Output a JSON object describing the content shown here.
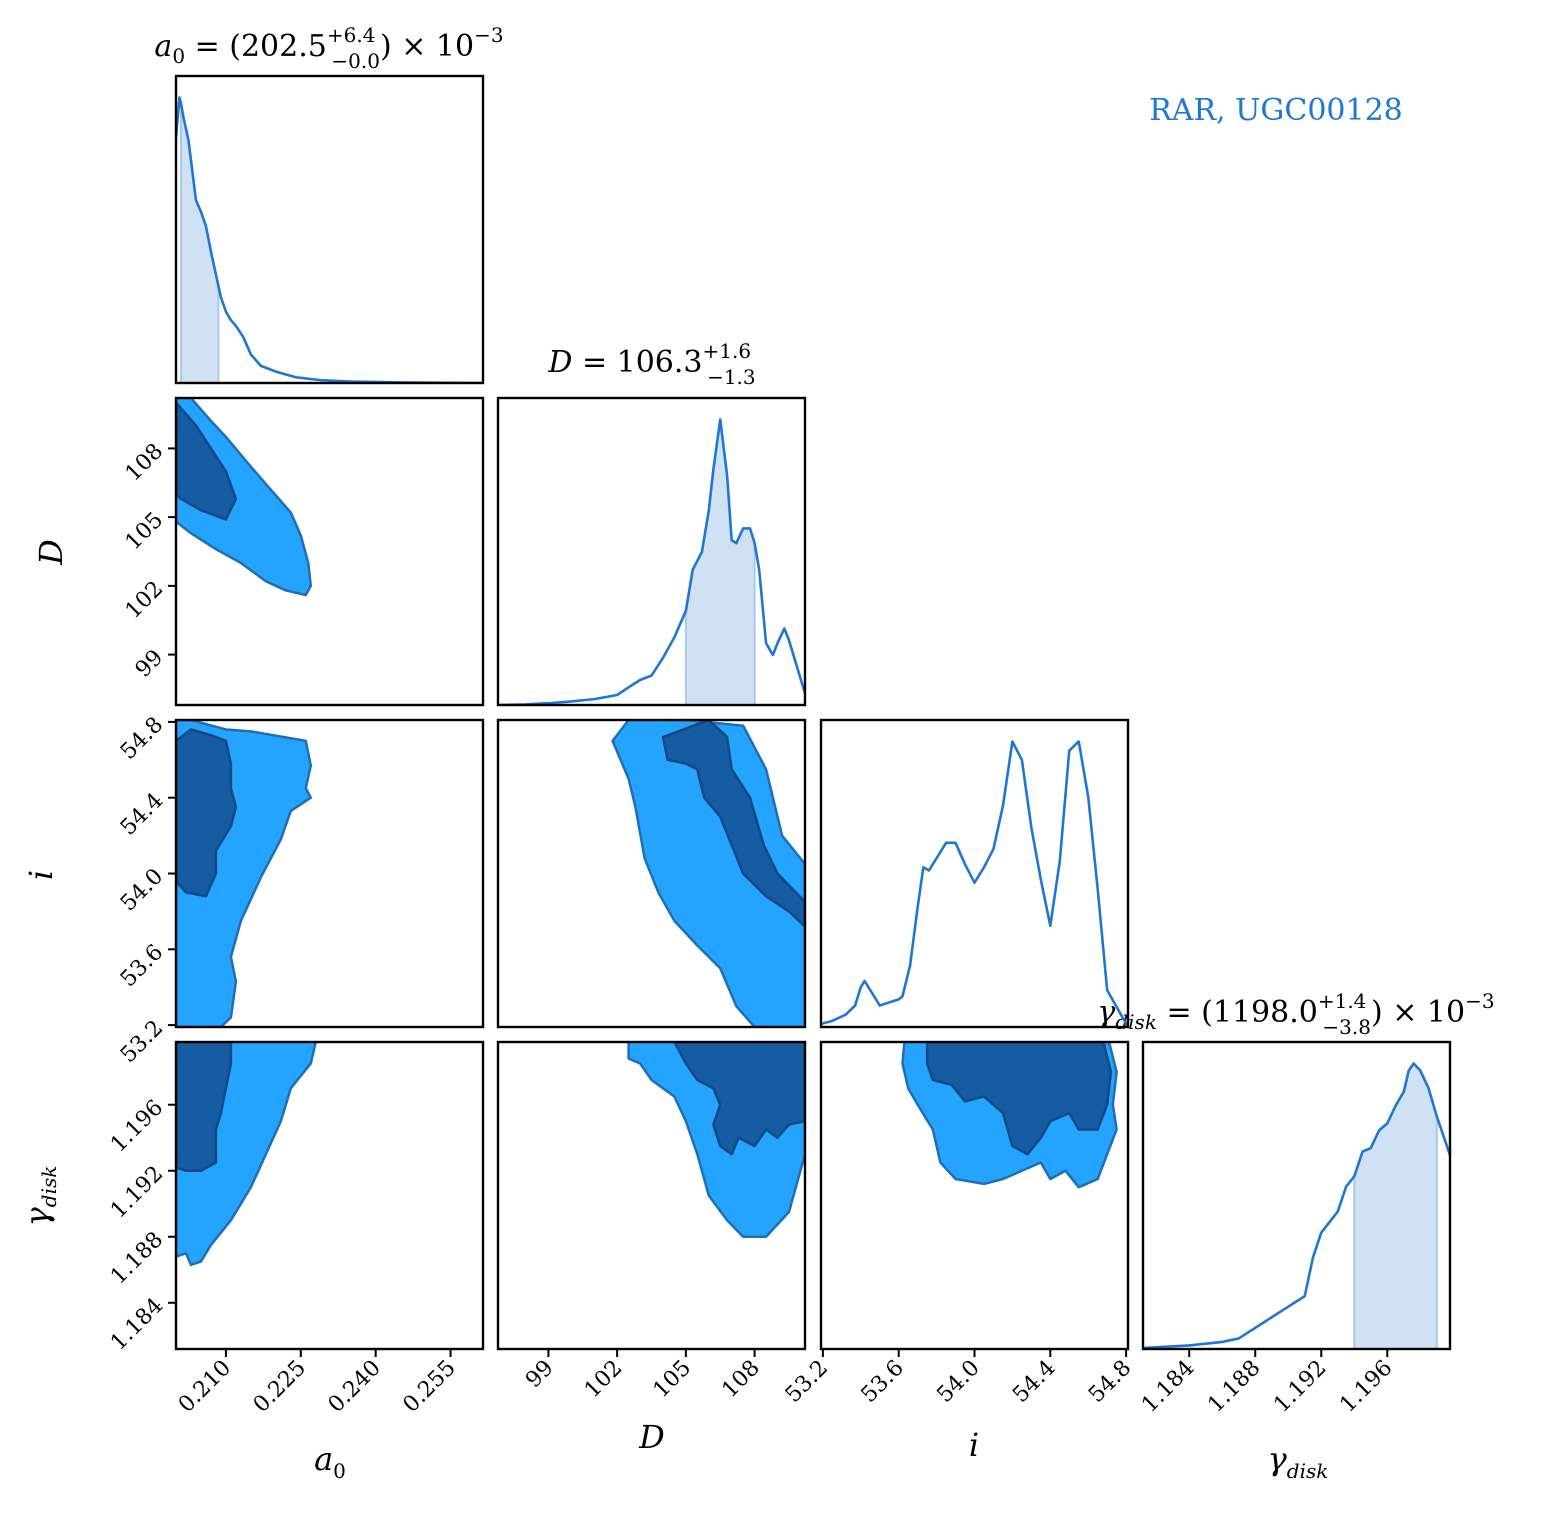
{
  "figure": {
    "legend_text": "RAR, UGC00128",
    "colors": {
      "line": "#1f77d4",
      "hist_fill": "#cfe1f3",
      "contour_inner": "#155ca3",
      "contour_outer": "#24a3ff",
      "contour_edge": "#1f6fb5",
      "frame": "#000000"
    }
  },
  "titles": {
    "a0": {
      "lhs": "a",
      "sub": "0",
      "eq": " = (202.5",
      "sup": "+6.4",
      "subscr": "−0.0",
      "tail": ") × 10",
      "exp": "−3"
    },
    "D": {
      "lhs": "D",
      "eq": " = 106.3",
      "sup": "+1.6",
      "subscr": "−1.3"
    },
    "gamma": {
      "lhs": "γ",
      "sub": "disk",
      "eq": " = (1198.0",
      "sup": "+1.4",
      "subscr": "−3.8",
      "tail": ") × 10",
      "exp": "−3"
    }
  },
  "axis_labels": {
    "x": [
      {
        "main": "a",
        "sub": "0"
      },
      {
        "main": "D",
        "sub": ""
      },
      {
        "main": "i",
        "sub": ""
      },
      {
        "main": "γ",
        "sub": "disk"
      }
    ],
    "y": [
      {
        "main": "D",
        "sub": ""
      },
      {
        "main": "i",
        "sub": ""
      },
      {
        "main": "γ",
        "sub": "disk"
      }
    ]
  },
  "chart_data": {
    "type": "corner",
    "parameters": [
      "a_0",
      "D",
      "i",
      "gamma_disk"
    ],
    "ranges": {
      "a0": [
        0.2,
        0.2615
      ],
      "D": [
        96.8,
        110.2
      ],
      "i": [
        53.19,
        54.81
      ],
      "gamma": [
        1.1812,
        1.1998
      ]
    },
    "ticks": {
      "a0": [
        "0.210",
        "0.225",
        "0.240",
        "0.255"
      ],
      "D": [
        "99",
        "102",
        "105",
        "108"
      ],
      "i": [
        "53.2",
        "53.6",
        "54.0",
        "54.4",
        "54.8"
      ],
      "gamma": [
        "1.184",
        "1.188",
        "1.192",
        "1.196"
      ]
    },
    "marginals": {
      "a0": {
        "x": [
          0.2,
          0.2007,
          0.201,
          0.2015,
          0.202,
          0.2025,
          0.203,
          0.204,
          0.205,
          0.206,
          0.207,
          0.208,
          0.209,
          0.21,
          0.211,
          0.212,
          0.2135,
          0.215,
          0.217,
          0.22,
          0.224,
          0.229,
          0.235,
          0.245,
          0.2615
        ],
        "y": [
          0.86,
          1.0,
          0.98,
          0.93,
          0.89,
          0.85,
          0.78,
          0.64,
          0.6,
          0.55,
          0.46,
          0.38,
          0.3,
          0.25,
          0.22,
          0.2,
          0.16,
          0.1,
          0.06,
          0.04,
          0.02,
          0.01,
          0.005,
          0.002,
          0.0
        ],
        "shade": [
          0.201,
          0.2085
        ]
      },
      "D": {
        "x": [
          96.8,
          98.0,
          99.0,
          100.0,
          101.0,
          102.0,
          102.5,
          103.0,
          103.5,
          104.0,
          104.5,
          105.0,
          105.3,
          105.7,
          106.0,
          106.2,
          106.5,
          106.8,
          107.0,
          107.2,
          107.5,
          107.8,
          108.0,
          108.2,
          108.5,
          108.8,
          109.0,
          109.3,
          109.5,
          110.2
        ],
        "y": [
          0.0,
          0.002,
          0.006,
          0.012,
          0.02,
          0.034,
          0.06,
          0.085,
          0.1,
          0.16,
          0.23,
          0.32,
          0.46,
          0.52,
          0.66,
          0.8,
          0.97,
          0.78,
          0.56,
          0.55,
          0.6,
          0.6,
          0.55,
          0.46,
          0.21,
          0.17,
          0.21,
          0.26,
          0.22,
          0.04
        ],
        "shade": [
          105.0,
          108.0
        ]
      },
      "i": {
        "x": [
          53.19,
          53.25,
          53.32,
          53.37,
          53.4,
          53.42,
          53.46,
          53.5,
          53.55,
          53.6,
          53.62,
          53.66,
          53.7,
          53.73,
          53.76,
          53.8,
          53.85,
          53.9,
          53.95,
          54.0,
          54.05,
          54.1,
          54.15,
          54.2,
          54.25,
          54.3,
          54.35,
          54.4,
          54.45,
          54.5,
          54.55,
          54.6,
          54.65,
          54.7,
          54.81
        ],
        "y": [
          0.01,
          0.02,
          0.04,
          0.07,
          0.13,
          0.15,
          0.11,
          0.07,
          0.08,
          0.09,
          0.1,
          0.2,
          0.39,
          0.52,
          0.51,
          0.55,
          0.6,
          0.6,
          0.53,
          0.47,
          0.52,
          0.58,
          0.72,
          0.93,
          0.87,
          0.65,
          0.48,
          0.33,
          0.54,
          0.9,
          0.93,
          0.75,
          0.45,
          0.12,
          0.0
        ],
        "shade": null
      },
      "gamma": {
        "x": [
          1.1812,
          1.184,
          1.186,
          1.187,
          1.188,
          1.189,
          1.19,
          1.191,
          1.1915,
          1.192,
          1.1925,
          1.193,
          1.1935,
          1.194,
          1.1945,
          1.195,
          1.1955,
          1.196,
          1.1965,
          1.197,
          1.1973,
          1.1976,
          1.198,
          1.1985,
          1.199,
          1.1998
        ],
        "y": [
          0.003,
          0.01,
          0.02,
          0.03,
          0.06,
          0.09,
          0.12,
          0.15,
          0.26,
          0.33,
          0.36,
          0.39,
          0.46,
          0.49,
          0.56,
          0.57,
          0.62,
          0.64,
          0.69,
          0.73,
          0.79,
          0.81,
          0.79,
          0.74,
          0.66,
          0.55
        ],
        "shade": [
          1.194,
          1.199
        ]
      }
    },
    "contours": {
      "D_vs_a0": {
        "outer": [
          [
            0.2,
            110.2
          ],
          [
            0.203,
            110.2
          ],
          [
            0.207,
            109.2
          ],
          [
            0.21,
            108.5
          ],
          [
            0.215,
            107.2
          ],
          [
            0.219,
            106.2
          ],
          [
            0.223,
            105.2
          ],
          [
            0.225,
            104.2
          ],
          [
            0.2265,
            103.0
          ],
          [
            0.227,
            102.0
          ],
          [
            0.226,
            101.6
          ],
          [
            0.222,
            101.8
          ],
          [
            0.218,
            102.2
          ],
          [
            0.213,
            103.0
          ],
          [
            0.208,
            103.6
          ],
          [
            0.203,
            104.3
          ],
          [
            0.2,
            104.8
          ]
        ],
        "inner": [
          [
            0.2,
            110.0
          ],
          [
            0.204,
            109.0
          ],
          [
            0.207,
            108.0
          ],
          [
            0.21,
            107.0
          ],
          [
            0.212,
            105.8
          ],
          [
            0.21,
            104.9
          ],
          [
            0.205,
            105.3
          ],
          [
            0.201,
            105.8
          ],
          [
            0.2,
            106.0
          ]
        ]
      },
      "i_vs_a0": {
        "outer": [
          [
            0.2,
            54.81
          ],
          [
            0.203,
            54.81
          ],
          [
            0.21,
            54.76
          ],
          [
            0.215,
            54.75
          ],
          [
            0.226,
            54.7
          ],
          [
            0.227,
            54.57
          ],
          [
            0.226,
            54.45
          ],
          [
            0.227,
            54.4
          ],
          [
            0.223,
            54.33
          ],
          [
            0.221,
            54.18
          ],
          [
            0.217,
            53.98
          ],
          [
            0.213,
            53.75
          ],
          [
            0.211,
            53.56
          ],
          [
            0.212,
            53.43
          ],
          [
            0.211,
            53.24
          ],
          [
            0.209,
            53.19
          ],
          [
            0.2,
            53.19
          ]
        ],
        "inner": [
          [
            0.2,
            54.7
          ],
          [
            0.203,
            54.76
          ],
          [
            0.207,
            54.73
          ],
          [
            0.21,
            54.7
          ],
          [
            0.211,
            54.58
          ],
          [
            0.211,
            54.45
          ],
          [
            0.212,
            54.35
          ],
          [
            0.211,
            54.25
          ],
          [
            0.208,
            54.12
          ],
          [
            0.208,
            54.0
          ],
          [
            0.206,
            53.88
          ],
          [
            0.202,
            53.9
          ],
          [
            0.2,
            53.96
          ]
        ]
      },
      "gamma_vs_a0": {
        "outer": [
          [
            0.2,
            1.1998
          ],
          [
            0.228,
            1.1998
          ],
          [
            0.227,
            1.1985
          ],
          [
            0.223,
            1.197
          ],
          [
            0.221,
            1.195
          ],
          [
            0.218,
            1.193
          ],
          [
            0.215,
            1.191
          ],
          [
            0.211,
            1.189
          ],
          [
            0.207,
            1.1875
          ],
          [
            0.205,
            1.1865
          ],
          [
            0.203,
            1.1863
          ],
          [
            0.202,
            1.187
          ],
          [
            0.2,
            1.1868
          ]
        ],
        "inner": [
          [
            0.2,
            1.1998
          ],
          [
            0.211,
            1.1998
          ],
          [
            0.211,
            1.1985
          ],
          [
            0.21,
            1.197
          ],
          [
            0.209,
            1.1955
          ],
          [
            0.208,
            1.1945
          ],
          [
            0.208,
            1.1925
          ],
          [
            0.205,
            1.192
          ],
          [
            0.202,
            1.192
          ],
          [
            0.2,
            1.1922
          ]
        ]
      },
      "i_vs_D": {
        "outer": [
          [
            102.5,
            54.81
          ],
          [
            105.0,
            54.81
          ],
          [
            107.5,
            54.78
          ],
          [
            108.5,
            54.55
          ],
          [
            109.2,
            54.2
          ],
          [
            110.2,
            54.05
          ],
          [
            110.2,
            53.19
          ],
          [
            108.0,
            53.19
          ],
          [
            107.2,
            53.3
          ],
          [
            106.5,
            53.5
          ],
          [
            105.5,
            53.62
          ],
          [
            104.5,
            53.75
          ],
          [
            103.8,
            53.9
          ],
          [
            103.2,
            54.08
          ],
          [
            102.8,
            54.35
          ],
          [
            102.5,
            54.5
          ],
          [
            101.8,
            54.7
          ]
        ],
        "inner": [
          [
            104.0,
            54.72
          ],
          [
            106.0,
            54.81
          ],
          [
            106.8,
            54.72
          ],
          [
            107.0,
            54.55
          ],
          [
            107.8,
            54.4
          ],
          [
            108.4,
            54.15
          ],
          [
            109.0,
            54.0
          ],
          [
            110.2,
            53.85
          ],
          [
            110.2,
            53.72
          ],
          [
            109.5,
            53.8
          ],
          [
            108.5,
            53.88
          ],
          [
            107.5,
            54.0
          ],
          [
            107.0,
            54.15
          ],
          [
            106.5,
            54.3
          ],
          [
            105.8,
            54.4
          ],
          [
            105.5,
            54.55
          ],
          [
            105.0,
            54.58
          ],
          [
            104.2,
            54.6
          ]
        ]
      },
      "gamma_vs_D": {
        "outer": [
          [
            102.5,
            1.1998
          ],
          [
            110.2,
            1.1998
          ],
          [
            110.2,
            1.193
          ],
          [
            109.8,
            1.191
          ],
          [
            109.5,
            1.1895
          ],
          [
            108.5,
            1.188
          ],
          [
            107.5,
            1.188
          ],
          [
            106.8,
            1.189
          ],
          [
            106.0,
            1.1905
          ],
          [
            105.5,
            1.193
          ],
          [
            105.0,
            1.195
          ],
          [
            104.5,
            1.1965
          ],
          [
            103.5,
            1.1975
          ],
          [
            103.0,
            1.1985
          ],
          [
            102.5,
            1.1988
          ]
        ],
        "inner": [
          [
            104.5,
            1.1998
          ],
          [
            110.2,
            1.1998
          ],
          [
            110.2,
            1.195
          ],
          [
            109.5,
            1.1948
          ],
          [
            109.0,
            1.194
          ],
          [
            108.5,
            1.1945
          ],
          [
            108.0,
            1.1935
          ],
          [
            107.3,
            1.194
          ],
          [
            107.0,
            1.193
          ],
          [
            106.5,
            1.1935
          ],
          [
            106.2,
            1.1948
          ],
          [
            106.5,
            1.196
          ],
          [
            106.2,
            1.197
          ],
          [
            105.5,
            1.1975
          ],
          [
            105.0,
            1.1985
          ]
        ]
      },
      "gamma_vs_i": {
        "outer": [
          [
            53.63,
            1.1998
          ],
          [
            54.71,
            1.1998
          ],
          [
            54.75,
            1.198
          ],
          [
            54.73,
            1.196
          ],
          [
            54.75,
            1.1945
          ],
          [
            54.7,
            1.193
          ],
          [
            54.65,
            1.1915
          ],
          [
            54.55,
            1.191
          ],
          [
            54.48,
            1.192
          ],
          [
            54.4,
            1.1915
          ],
          [
            54.35,
            1.1925
          ],
          [
            54.25,
            1.192
          ],
          [
            54.15,
            1.1915
          ],
          [
            54.05,
            1.1912
          ],
          [
            53.9,
            1.1915
          ],
          [
            53.82,
            1.1925
          ],
          [
            53.78,
            1.1945
          ],
          [
            53.7,
            1.196
          ],
          [
            53.65,
            1.197
          ],
          [
            53.62,
            1.1985
          ]
        ],
        "inner": [
          [
            53.75,
            1.1998
          ],
          [
            54.68,
            1.1998
          ],
          [
            54.72,
            1.198
          ],
          [
            54.7,
            1.196
          ],
          [
            54.65,
            1.1945
          ],
          [
            54.55,
            1.1945
          ],
          [
            54.5,
            1.1955
          ],
          [
            54.4,
            1.195
          ],
          [
            54.35,
            1.194
          ],
          [
            54.28,
            1.193
          ],
          [
            54.2,
            1.1935
          ],
          [
            54.15,
            1.1955
          ],
          [
            54.05,
            1.1965
          ],
          [
            53.95,
            1.1962
          ],
          [
            53.88,
            1.1972
          ],
          [
            53.78,
            1.1975
          ],
          [
            53.75,
            1.1985
          ]
        ]
      }
    }
  }
}
